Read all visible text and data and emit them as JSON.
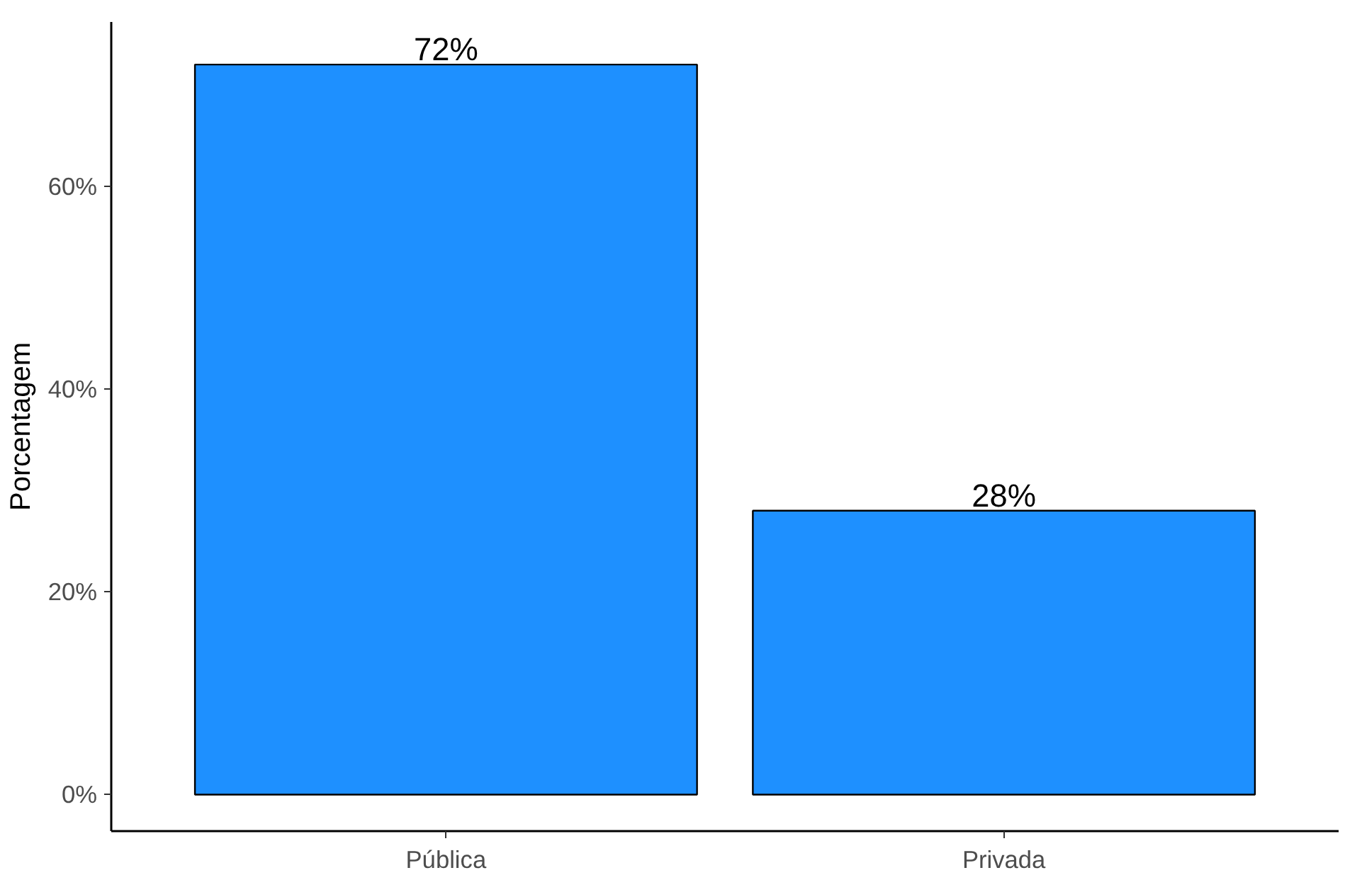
{
  "chart_data": {
    "type": "bar",
    "ylabel": "Porcentagem",
    "categories": [
      "Pública",
      "Privada"
    ],
    "values": [
      72,
      28
    ],
    "value_labels": [
      "72%",
      "28%"
    ],
    "color": "#1e90ff",
    "ylim": [
      -3.6,
      76.2
    ],
    "yticks": [
      {
        "value": 0,
        "label": "0%"
      },
      {
        "value": 20,
        "label": "20%"
      },
      {
        "value": 40,
        "label": "40%"
      },
      {
        "value": 60,
        "label": "60%"
      }
    ],
    "grid": false
  }
}
